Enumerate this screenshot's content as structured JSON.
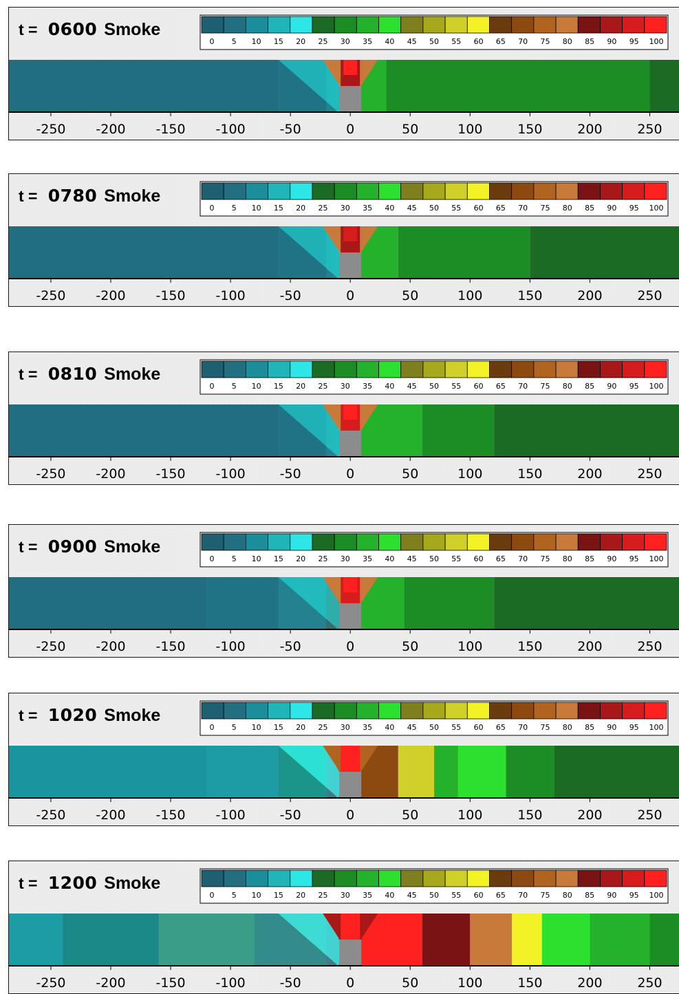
{
  "chart_data": {
    "type": "heatmap",
    "variable": "Smoke",
    "legend": {
      "ticks": [
        "0",
        "5",
        "10",
        "15",
        "20",
        "25",
        "30",
        "35",
        "40",
        "45",
        "50",
        "55",
        "60",
        "65",
        "70",
        "75",
        "80",
        "85",
        "90",
        "95",
        "100"
      ],
      "colors": [
        "#1f5f72",
        "#216f80",
        "#1a8e9a",
        "#20b5b8",
        "#2ee6e6",
        "#1c6b24",
        "#1c8c24",
        "#24b22c",
        "#2ee02e",
        "#7f7f1f",
        "#a8a81c",
        "#d0d02a",
        "#f2f227",
        "#6a3b0c",
        "#8c4a10",
        "#b06420",
        "#c87a3a",
        "#7a1414",
        "#a81818",
        "#d61c1c",
        "#ff2020"
      ],
      "range": [
        0,
        100
      ]
    },
    "x_ticks": [
      -250,
      -200,
      -150,
      -100,
      -50,
      0,
      50,
      100,
      150,
      200,
      250
    ],
    "x_range": [
      -285,
      275
    ],
    "panels": [
      {
        "time_label": "t =",
        "time": "0600",
        "variable": "Smoke"
      },
      {
        "time_label": "t =",
        "time": "0780",
        "variable": "Smoke"
      },
      {
        "time_label": "t =",
        "time": "0810",
        "variable": "Smoke"
      },
      {
        "time_label": "t =",
        "time": "0900",
        "variable": "Smoke"
      },
      {
        "time_label": "t =",
        "time": "1020",
        "variable": "Smoke"
      },
      {
        "time_label": "t =",
        "time": "1200",
        "variable": "Smoke"
      }
    ]
  }
}
